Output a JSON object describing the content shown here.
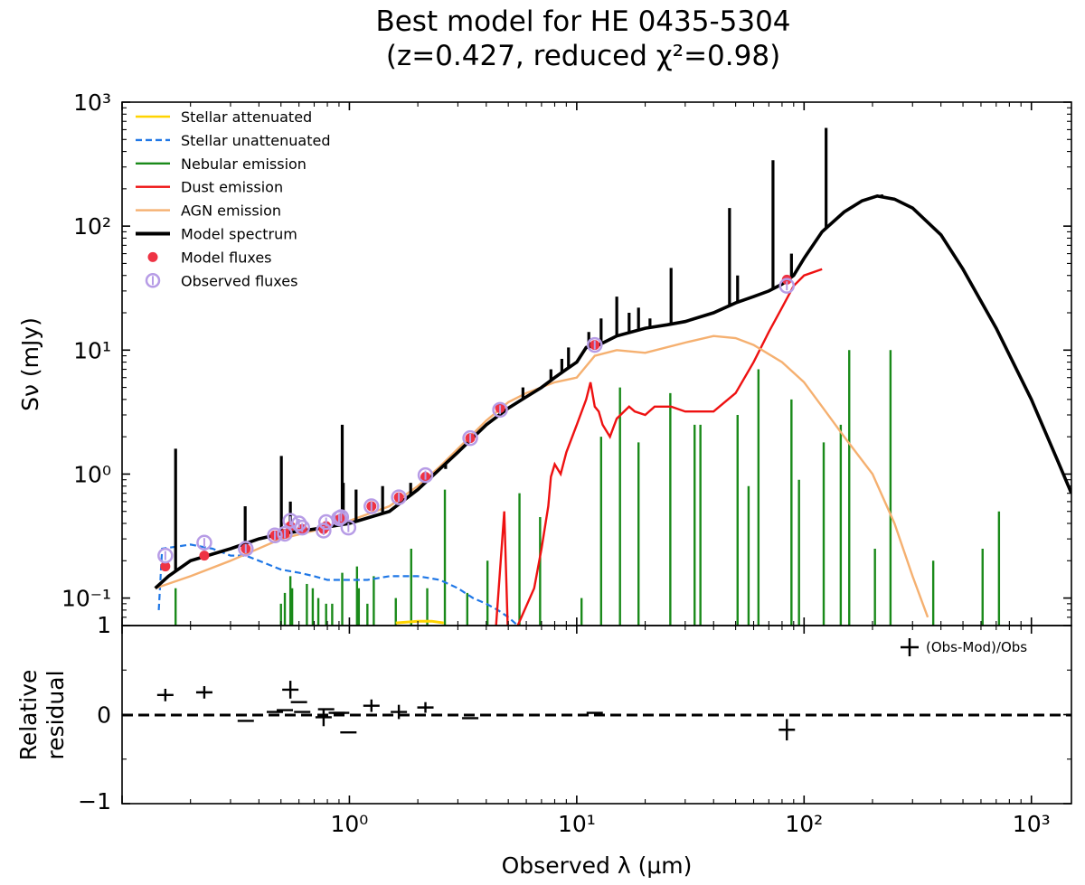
{
  "chart_data": [
    {
      "type": "line",
      "title": "Best model for HE 0435-5304",
      "subtitle": "(z=0.427, reduced χ²=0.98)",
      "xlabel": "Observed λ (μm)",
      "ylabel": "Sν (mJy)",
      "x_scale": "log",
      "y_scale": "log",
      "xlim": [
        0.1,
        1500
      ],
      "ylim": [
        0.06,
        1000
      ],
      "x_ticks": [
        {
          "value": 1,
          "label": "10⁰"
        },
        {
          "value": 10,
          "label": "10¹"
        },
        {
          "value": 100,
          "label": "10²"
        },
        {
          "value": 1000,
          "label": "10³"
        }
      ],
      "y_ticks": [
        {
          "value": 0.1,
          "label": "10⁻¹"
        },
        {
          "value": 1,
          "label": "10⁰"
        },
        {
          "value": 10,
          "label": "10¹"
        },
        {
          "value": 100,
          "label": "10²"
        },
        {
          "value": 1000,
          "label": "10³"
        }
      ],
      "legend": "top-left",
      "grid": false,
      "colors": {
        "stellar_attenuated": "#ffd400",
        "stellar_unattenuated": "#1f77e6",
        "nebular": "#1a8a1a",
        "dust": "#ee1111",
        "agn": "#f5b070",
        "model": "#000000",
        "model_fluxes": "#ee3344",
        "observed_fluxes": "#b79ce6"
      },
      "legend_labels": {
        "stellar_attenuated": "Stellar attenuated",
        "stellar_unattenuated": "Stellar unattenuated",
        "nebular": "Nebular emission",
        "dust": "Dust emission",
        "agn": "AGN emission",
        "model": "Model spectrum",
        "model_fluxes": "Model fluxes",
        "observed_fluxes": "Observed fluxes"
      },
      "series": {
        "model_spectrum": [
          [
            0.14,
            0.12
          ],
          [
            0.16,
            0.15
          ],
          [
            0.2,
            0.2
          ],
          [
            0.3,
            0.25
          ],
          [
            0.4,
            0.3
          ],
          [
            0.5,
            0.33
          ],
          [
            0.7,
            0.36
          ],
          [
            1.0,
            0.4
          ],
          [
            1.5,
            0.5
          ],
          [
            2.0,
            0.75
          ],
          [
            2.5,
            1.1
          ],
          [
            3.0,
            1.5
          ],
          [
            4.0,
            2.5
          ],
          [
            5.0,
            3.4
          ],
          [
            6.0,
            4.2
          ],
          [
            7.0,
            5.0
          ],
          [
            8.0,
            6.0
          ],
          [
            9.0,
            7.0
          ],
          [
            10.0,
            8.0
          ],
          [
            11.0,
            10.5
          ],
          [
            12.5,
            11.0
          ],
          [
            15.0,
            13.0
          ],
          [
            20.0,
            15.0
          ],
          [
            25.0,
            16.0
          ],
          [
            30.0,
            17.0
          ],
          [
            40.0,
            20.0
          ],
          [
            50.0,
            24.0
          ],
          [
            60.0,
            27.0
          ],
          [
            70.0,
            30.0
          ],
          [
            80.0,
            34.0
          ],
          [
            90.0,
            40.0
          ],
          [
            100.0,
            55.0
          ],
          [
            120.0,
            90.0
          ],
          [
            150.0,
            130.0
          ],
          [
            180.0,
            160.0
          ],
          [
            210.0,
            175.0
          ],
          [
            250.0,
            165.0
          ],
          [
            300.0,
            140.0
          ],
          [
            400.0,
            85.0
          ],
          [
            500.0,
            45.0
          ],
          [
            700.0,
            15.0
          ],
          [
            1000.0,
            4.0
          ],
          [
            1300.0,
            1.3
          ],
          [
            1500.0,
            0.7
          ]
        ],
        "model_lines": [
          [
            0.172,
            1.6
          ],
          [
            0.348,
            0.55
          ],
          [
            0.502,
            1.4
          ],
          [
            0.55,
            0.6
          ],
          [
            0.93,
            2.5
          ],
          [
            0.94,
            0.85
          ],
          [
            1.07,
            0.75
          ],
          [
            1.4,
            0.8
          ],
          [
            1.86,
            0.85
          ],
          [
            2.65,
            1.1
          ],
          [
            5.8,
            5.0
          ],
          [
            7.7,
            7.0
          ],
          [
            8.6,
            8.5
          ],
          [
            9.2,
            10.5
          ],
          [
            11.3,
            14.0
          ],
          [
            12.8,
            18.0
          ],
          [
            15.0,
            27.0
          ],
          [
            17.0,
            20.0
          ],
          [
            18.7,
            22.0
          ],
          [
            21.0,
            18.0
          ],
          [
            26.0,
            46.0
          ],
          [
            47.0,
            140.0
          ],
          [
            51.0,
            40.0
          ],
          [
            73.0,
            340.0
          ],
          [
            88.0,
            60.0
          ],
          [
            125.0,
            620.0
          ],
          [
            220.0,
            180.0
          ]
        ],
        "nebular_lines": [
          [
            0.172,
            0.12
          ],
          [
            0.5,
            0.09
          ],
          [
            0.52,
            0.11
          ],
          [
            0.55,
            0.15
          ],
          [
            0.56,
            0.12
          ],
          [
            0.65,
            0.13
          ],
          [
            0.69,
            0.12
          ],
          [
            0.73,
            0.1
          ],
          [
            0.79,
            0.09
          ],
          [
            0.84,
            0.09
          ],
          [
            0.93,
            0.16
          ],
          [
            1.08,
            0.18
          ],
          [
            1.1,
            0.12
          ],
          [
            1.2,
            0.09
          ],
          [
            1.28,
            0.15
          ],
          [
            1.6,
            0.1
          ],
          [
            1.87,
            0.25
          ],
          [
            2.2,
            0.12
          ],
          [
            2.63,
            0.75
          ],
          [
            3.3,
            0.11
          ],
          [
            4.05,
            0.2
          ],
          [
            5.6,
            0.7
          ],
          [
            6.9,
            0.45
          ],
          [
            10.5,
            0.1
          ],
          [
            12.8,
            2.0
          ],
          [
            15.5,
            5.0
          ],
          [
            18.7,
            1.8
          ],
          [
            25.8,
            4.5
          ],
          [
            33.0,
            2.5
          ],
          [
            35.0,
            2.5
          ],
          [
            51.0,
            3.0
          ],
          [
            57.0,
            0.8
          ],
          [
            63.0,
            7.0
          ],
          [
            88.0,
            4.0
          ],
          [
            95.0,
            0.9
          ],
          [
            122.0,
            1.8
          ],
          [
            145.0,
            2.5
          ],
          [
            158.0,
            10.0
          ],
          [
            205.0,
            0.25
          ],
          [
            240.0,
            10.0
          ],
          [
            370.0,
            0.2
          ],
          [
            610.0,
            0.25
          ],
          [
            720.0,
            0.5
          ]
        ],
        "stellar_unattenuated": [
          [
            0.145,
            0.08
          ],
          [
            0.15,
            0.25
          ],
          [
            0.2,
            0.27
          ],
          [
            0.25,
            0.25
          ],
          [
            0.3,
            0.22
          ],
          [
            0.35,
            0.22
          ],
          [
            0.4,
            0.2
          ],
          [
            0.5,
            0.17
          ],
          [
            0.6,
            0.16
          ],
          [
            0.7,
            0.15
          ],
          [
            0.8,
            0.14
          ],
          [
            1.0,
            0.14
          ],
          [
            1.2,
            0.14
          ],
          [
            1.5,
            0.15
          ],
          [
            2.0,
            0.15
          ],
          [
            2.5,
            0.14
          ],
          [
            3.0,
            0.12
          ],
          [
            3.5,
            0.1
          ],
          [
            4.0,
            0.09
          ],
          [
            4.5,
            0.08
          ],
          [
            5.0,
            0.07
          ],
          [
            5.5,
            0.06
          ]
        ],
        "stellar_attenuated": [
          [
            1.6,
            0.063
          ],
          [
            2.0,
            0.065
          ],
          [
            2.3,
            0.065
          ],
          [
            2.6,
            0.063
          ]
        ],
        "agn_emission": [
          [
            0.14,
            0.12
          ],
          [
            0.2,
            0.15
          ],
          [
            0.3,
            0.2
          ],
          [
            0.5,
            0.3
          ],
          [
            0.7,
            0.35
          ],
          [
            1.0,
            0.42
          ],
          [
            1.5,
            0.55
          ],
          [
            2.0,
            0.8
          ],
          [
            2.5,
            1.15
          ],
          [
            3.0,
            1.6
          ],
          [
            4.0,
            2.7
          ],
          [
            5.0,
            3.8
          ],
          [
            6.0,
            4.5
          ],
          [
            8.0,
            5.5
          ],
          [
            10.0,
            6.0
          ],
          [
            12.0,
            9.0
          ],
          [
            15.0,
            10.0
          ],
          [
            20.0,
            9.5
          ],
          [
            30.0,
            11.5
          ],
          [
            40.0,
            13.0
          ],
          [
            50.0,
            12.5
          ],
          [
            60.0,
            11.0
          ],
          [
            80.0,
            8.0
          ],
          [
            100.0,
            5.5
          ],
          [
            120.0,
            3.5
          ],
          [
            150.0,
            2.0
          ],
          [
            200.0,
            1.0
          ],
          [
            250.0,
            0.4
          ],
          [
            300.0,
            0.15
          ],
          [
            350.0,
            0.07
          ]
        ],
        "dust_emission": [
          [
            4.3,
            0.03
          ],
          [
            4.8,
            0.5
          ],
          [
            5.0,
            0.04
          ],
          [
            5.5,
            0.06
          ],
          [
            6.5,
            0.12
          ],
          [
            7.0,
            0.25
          ],
          [
            7.5,
            0.55
          ],
          [
            7.7,
            0.95
          ],
          [
            8.0,
            1.2
          ],
          [
            8.5,
            1.0
          ],
          [
            9.0,
            1.5
          ],
          [
            10.0,
            2.5
          ],
          [
            11.0,
            4.0
          ],
          [
            11.5,
            5.5
          ],
          [
            12.0,
            3.5
          ],
          [
            12.5,
            3.2
          ],
          [
            13.0,
            2.5
          ],
          [
            14.0,
            2.0
          ],
          [
            15.0,
            2.8
          ],
          [
            17.0,
            3.5
          ],
          [
            18.0,
            3.2
          ],
          [
            20.0,
            3.0
          ],
          [
            22.0,
            3.5
          ],
          [
            26.0,
            3.5
          ],
          [
            30.0,
            3.2
          ],
          [
            40.0,
            3.2
          ],
          [
            50.0,
            4.5
          ],
          [
            60.0,
            8.0
          ],
          [
            70.0,
            14.0
          ],
          [
            80.0,
            22.0
          ],
          [
            90.0,
            33.0
          ],
          [
            100.0,
            40.0
          ],
          [
            120.0,
            45.0
          ]
        ],
        "model_fluxes": [
          [
            0.155,
            0.18
          ],
          [
            0.23,
            0.22
          ],
          [
            0.35,
            0.25
          ],
          [
            0.47,
            0.32
          ],
          [
            0.52,
            0.33
          ],
          [
            0.55,
            0.38
          ],
          [
            0.62,
            0.36
          ],
          [
            0.77,
            0.36
          ],
          [
            0.79,
            0.38
          ],
          [
            0.9,
            0.43
          ],
          [
            0.92,
            0.44
          ],
          [
            1.25,
            0.55
          ],
          [
            1.65,
            0.65
          ],
          [
            2.16,
            0.95
          ],
          [
            3.4,
            1.95
          ],
          [
            4.6,
            3.4
          ],
          [
            12.0,
            11.0
          ],
          [
            84.0,
            37.0
          ]
        ],
        "observed_fluxes": [
          [
            0.155,
            0.22
          ],
          [
            0.23,
            0.28
          ],
          [
            0.35,
            0.25
          ],
          [
            0.47,
            0.32
          ],
          [
            0.52,
            0.33
          ],
          [
            0.55,
            0.42
          ],
          [
            0.6,
            0.4
          ],
          [
            0.62,
            0.37
          ],
          [
            0.77,
            0.35
          ],
          [
            0.79,
            0.41
          ],
          [
            0.9,
            0.44
          ],
          [
            0.92,
            0.45
          ],
          [
            0.99,
            0.37
          ],
          [
            1.25,
            0.55
          ],
          [
            1.65,
            0.65
          ],
          [
            2.16,
            0.98
          ],
          [
            3.4,
            1.95
          ],
          [
            4.6,
            3.3
          ],
          [
            12.0,
            11.0
          ],
          [
            84.0,
            33.0
          ]
        ]
      }
    },
    {
      "type": "scatter",
      "xlabel": "Observed λ (μm)",
      "ylabel": "Relative residual",
      "x_scale": "log",
      "xlim": [
        0.1,
        1500
      ],
      "ylim": [
        -1,
        1
      ],
      "y_ticks": [
        {
          "value": -1,
          "label": "−1"
        },
        {
          "value": 0,
          "label": "0"
        },
        {
          "value": 1,
          "label": "1"
        }
      ],
      "legend": "top-right",
      "legend_label": "(Obs-Mod)/Obs",
      "reference_line": 0,
      "points": [
        {
          "x": 0.155,
          "y": 0.22,
          "err": 0.07
        },
        {
          "x": 0.23,
          "y": 0.25,
          "err": 0.07
        },
        {
          "x": 0.35,
          "y": -0.07,
          "err": 0
        },
        {
          "x": 0.47,
          "y": 0.03,
          "err": 0
        },
        {
          "x": 0.52,
          "y": 0.05,
          "err": 0
        },
        {
          "x": 0.55,
          "y": 0.28,
          "err": 0.1
        },
        {
          "x": 0.6,
          "y": 0.14,
          "err": 0
        },
        {
          "x": 0.62,
          "y": 0.03,
          "err": 0
        },
        {
          "x": 0.77,
          "y": -0.03,
          "err": 0.1
        },
        {
          "x": 0.79,
          "y": 0.06,
          "err": 0
        },
        {
          "x": 0.88,
          "y": 0.02,
          "err": 0
        },
        {
          "x": 0.92,
          "y": 0.02,
          "err": 0
        },
        {
          "x": 0.99,
          "y": -0.2,
          "err": 0
        },
        {
          "x": 1.25,
          "y": 0.1,
          "err": 0.07
        },
        {
          "x": 1.65,
          "y": 0.03,
          "err": 0.08
        },
        {
          "x": 2.16,
          "y": 0.08,
          "err": 0.06
        },
        {
          "x": 3.4,
          "y": -0.04,
          "err": 0
        },
        {
          "x": 12.0,
          "y": 0.02,
          "err": 0
        },
        {
          "x": 84.0,
          "y": -0.17,
          "err": 0.12
        }
      ]
    }
  ]
}
